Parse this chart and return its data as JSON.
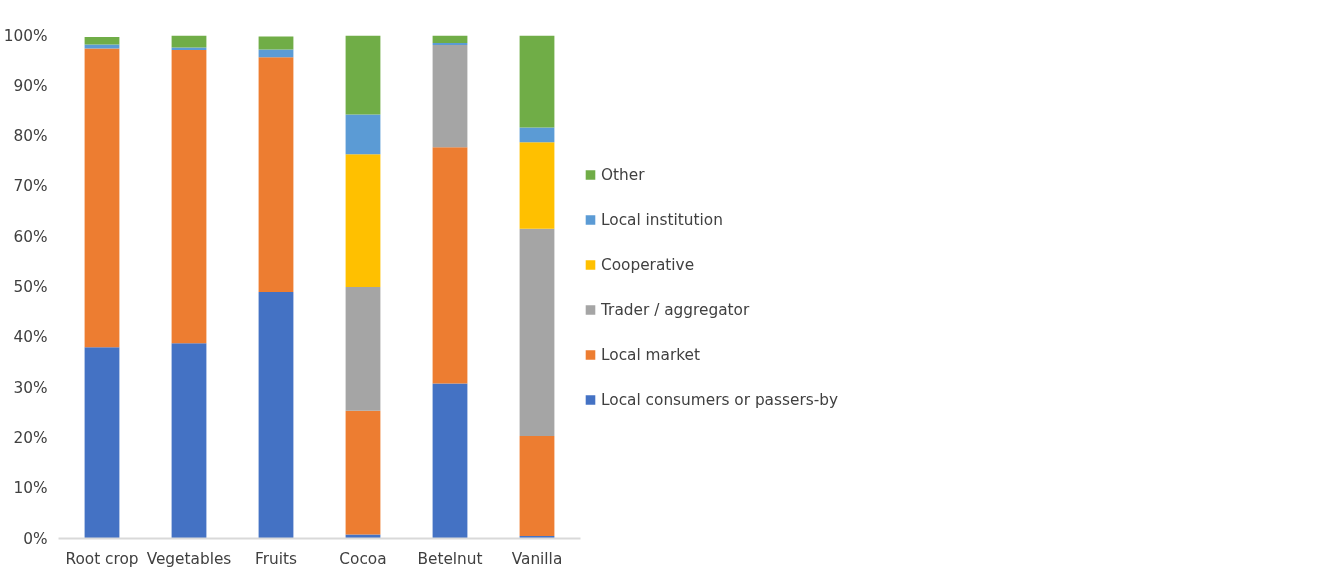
{
  "chart_data": {
    "type": "bar",
    "stacked": true,
    "categories": [
      "Root crop",
      "Vegetables",
      "Fruits",
      "Cocoa",
      "Betelnut",
      "Vanilla"
    ],
    "series": [
      {
        "name": "Local consumers or passers-by",
        "color": "#4472c4",
        "values": [
          38.0,
          38.8,
          49.0,
          0.8,
          30.8,
          0.5
        ]
      },
      {
        "name": "Local market",
        "color": "#ed7d31",
        "values": [
          59.4,
          58.3,
          46.7,
          24.6,
          47.0,
          19.9
        ]
      },
      {
        "name": "Trader / aggregator",
        "color": "#a5a5a5",
        "values": [
          null,
          0,
          null,
          24.6,
          20.3,
          41.2
        ]
      },
      {
        "name": "Cooperative",
        "color": "#ffc000",
        "values": [
          0,
          0,
          0,
          26.4,
          0,
          17.2
        ]
      },
      {
        "name": "Local institution",
        "color": "#5b9bd5",
        "values": [
          0.8,
          0.5,
          1.5,
          7.9,
          0.4,
          2.9
        ]
      },
      {
        "name": "Other",
        "color": "#70ad47",
        "values": [
          1.5,
          2.4,
          2.6,
          15.7,
          1.5,
          18.3
        ]
      }
    ],
    "ylim": [
      0,
      100
    ],
    "yticks": [
      {
        "value": 0,
        "label": "0%"
      },
      {
        "value": 10,
        "label": "10%"
      },
      {
        "value": 20,
        "label": "20%"
      },
      {
        "value": 30,
        "label": "30%"
      },
      {
        "value": 40,
        "label": "40%"
      },
      {
        "value": 50,
        "label": "50%"
      },
      {
        "value": 60,
        "label": "60%"
      },
      {
        "value": 70,
        "label": "70%"
      },
      {
        "value": 80,
        "label": "80%"
      },
      {
        "value": 90,
        "label": "90%"
      },
      {
        "value": 100,
        "label": "100%"
      }
    ],
    "grid": false,
    "legend": "right"
  }
}
